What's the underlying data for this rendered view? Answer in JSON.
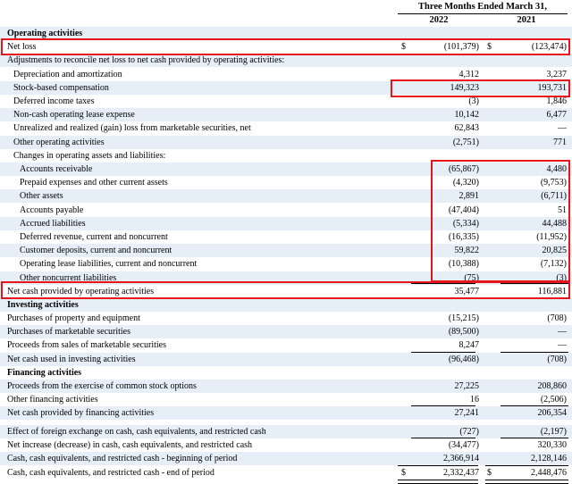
{
  "header": {
    "period": "Three Months Ended March 31,",
    "year1": "2022",
    "year2": "2021"
  },
  "colors": {
    "highlight": "#e8141c",
    "row_shade": "#e6eef8"
  },
  "rows": [
    {
      "label": "Operating activities",
      "v1": "",
      "v2": ""
    },
    {
      "label": "Net loss",
      "cur1": "$",
      "v1": "(101,379)",
      "cur2": "$",
      "v2": "(123,474)"
    },
    {
      "label": "Adjustments to reconcile net loss to net cash provided by operating activities:",
      "v1": "",
      "v2": ""
    },
    {
      "label": "Depreciation and amortization",
      "v1": "4,312",
      "v2": "3,237"
    },
    {
      "label": "Stock-based compensation",
      "v1": "149,323",
      "v2": "193,731"
    },
    {
      "label": "Deferred income taxes",
      "v1": "(3)",
      "v2": "1,846"
    },
    {
      "label": "Non-cash operating lease expense",
      "v1": "10,142",
      "v2": "6,477"
    },
    {
      "label": "Unrealized and realized (gain) loss from marketable securities, net",
      "v1": "62,843",
      "v2": "—"
    },
    {
      "label": "Other operating activities",
      "v1": "(2,751)",
      "v2": "771"
    },
    {
      "label": "Changes in operating assets and liabilities:",
      "v1": "",
      "v2": ""
    },
    {
      "label": "Accounts receivable",
      "v1": "(65,867)",
      "v2": "4,480"
    },
    {
      "label": "Prepaid expenses and other current assets",
      "v1": "(4,320)",
      "v2": "(9,753)"
    },
    {
      "label": "Other assets",
      "v1": "2,891",
      "v2": "(6,711)"
    },
    {
      "label": "Accounts payable",
      "v1": "(47,404)",
      "v2": "51"
    },
    {
      "label": "Accrued liabilities",
      "v1": "(5,334)",
      "v2": "44,488"
    },
    {
      "label": "Deferred revenue, current and noncurrent",
      "v1": "(16,335)",
      "v2": "(11,952)"
    },
    {
      "label": "Customer deposits, current and noncurrent",
      "v1": "59,822",
      "v2": "20,825"
    },
    {
      "label": "Operating lease liabilities, current and noncurrent",
      "v1": "(10,388)",
      "v2": "(7,132)"
    },
    {
      "label": "Other noncurrent liabilities",
      "v1": "(75)",
      "v2": "(3)"
    },
    {
      "label": "Net cash provided by operating activities",
      "v1": "35,477",
      "v2": "116,881"
    },
    {
      "label": "Investing activities",
      "v1": "",
      "v2": ""
    },
    {
      "label": "Purchases of property and equipment",
      "v1": "(15,215)",
      "v2": "(708)"
    },
    {
      "label": "Purchases of marketable securities",
      "v1": "(89,500)",
      "v2": "—"
    },
    {
      "label": "Proceeds from sales of marketable securities",
      "v1": "8,247",
      "v2": "—"
    },
    {
      "label": "Net cash used in investing activities",
      "v1": "(96,468)",
      "v2": "(708)"
    },
    {
      "label": "Financing activities",
      "v1": "",
      "v2": ""
    },
    {
      "label": "Proceeds from the exercise of common stock options",
      "v1": "27,225",
      "v2": "208,860"
    },
    {
      "label": "Other financing activities",
      "v1": "16",
      "v2": "(2,506)"
    },
    {
      "label": "Net cash provided by financing activities",
      "v1": "27,241",
      "v2": "206,354"
    },
    {
      "label": "Effect of foreign exchange on cash, cash equivalents, and restricted cash",
      "v1": "(727)",
      "v2": "(2,197)"
    },
    {
      "label": "Net increase (decrease) in cash, cash equivalents, and restricted cash",
      "v1": "(34,477)",
      "v2": "320,330"
    },
    {
      "label": "Cash, cash equivalents, and restricted cash - beginning of period",
      "v1": "2,366,914",
      "v2": "2,128,146"
    },
    {
      "label": "Cash, cash equivalents, and restricted cash - end of period",
      "cur1": "$",
      "v1": "2,332,437",
      "cur2": "$",
      "v2": "2,448,476"
    }
  ]
}
